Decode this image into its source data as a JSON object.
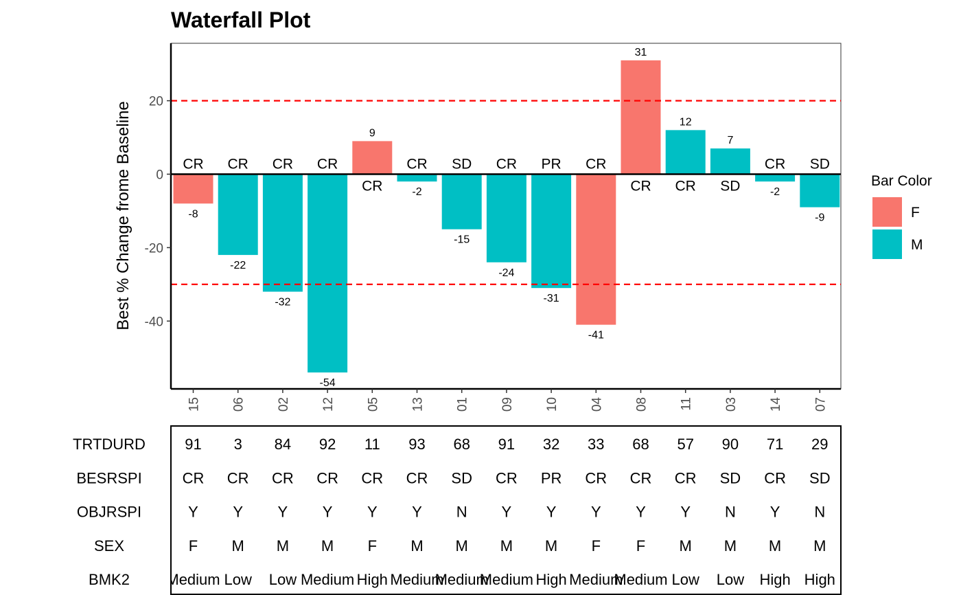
{
  "chart_data": {
    "type": "bar",
    "title": "Waterfall Plot",
    "ylabel": "Best % Change frome Baseline",
    "xlabel": "",
    "ylim": [
      -58,
      36
    ],
    "y_ticks": [
      20,
      0,
      -20,
      -40
    ],
    "y_tick_labels": [
      "20",
      "0",
      "-20",
      "-40"
    ],
    "reference_lines": [
      20,
      -30
    ],
    "reference_line_color": "#ff0000",
    "categories": [
      "15",
      "06",
      "02",
      "12",
      "05",
      "13",
      "01",
      "09",
      "10",
      "04",
      "08",
      "11",
      "03",
      "14",
      "07"
    ],
    "values": [
      -8,
      -22,
      -32,
      -54,
      9,
      -2,
      -15,
      -24,
      -31,
      -41,
      31,
      12,
      7,
      -2,
      -9
    ],
    "value_labels": [
      "-8",
      "-22",
      "-32",
      "-54",
      "9",
      "-2",
      "-15",
      "-24",
      "-31",
      "-41",
      "31",
      "12",
      "7",
      "-2",
      "-9"
    ],
    "response_labels": [
      "CR",
      "CR",
      "CR",
      "CR",
      "CR",
      "CR",
      "SD",
      "CR",
      "PR",
      "CR",
      "CR",
      "CR",
      "SD",
      "CR",
      "SD"
    ],
    "bar_color_groups": [
      "F",
      "M",
      "M",
      "M",
      "F",
      "M",
      "M",
      "M",
      "M",
      "F",
      "F",
      "M",
      "M",
      "M",
      "M"
    ],
    "legend": {
      "title": "Bar Color",
      "placement": "right",
      "items": [
        {
          "label": "F",
          "color": "#f8766d"
        },
        {
          "label": "M",
          "color": "#00bfc4"
        }
      ]
    },
    "table": {
      "rows": [
        {
          "label": "TRTDURD",
          "values": [
            "91",
            "3",
            "84",
            "92",
            "11",
            "93",
            "68",
            "91",
            "32",
            "33",
            "68",
            "57",
            "90",
            "71",
            "29"
          ]
        },
        {
          "label": "BESRSPI",
          "values": [
            "CR",
            "CR",
            "CR",
            "CR",
            "CR",
            "CR",
            "SD",
            "CR",
            "PR",
            "CR",
            "CR",
            "CR",
            "SD",
            "CR",
            "SD"
          ]
        },
        {
          "label": "OBJRSPI",
          "values": [
            "Y",
            "Y",
            "Y",
            "Y",
            "Y",
            "Y",
            "N",
            "Y",
            "Y",
            "Y",
            "Y",
            "Y",
            "N",
            "Y",
            "N"
          ]
        },
        {
          "label": "SEX",
          "values": [
            "F",
            "M",
            "M",
            "M",
            "F",
            "M",
            "M",
            "M",
            "M",
            "F",
            "F",
            "M",
            "M",
            "M",
            "M"
          ]
        },
        {
          "label": "BMK2",
          "values": [
            "Medium",
            "Low",
            "Low",
            "Medium",
            "High",
            "Medium",
            "Medium",
            "Medium",
            "High",
            "Medium",
            "Medium",
            "Low",
            "Low",
            "High",
            "High"
          ]
        }
      ]
    }
  }
}
